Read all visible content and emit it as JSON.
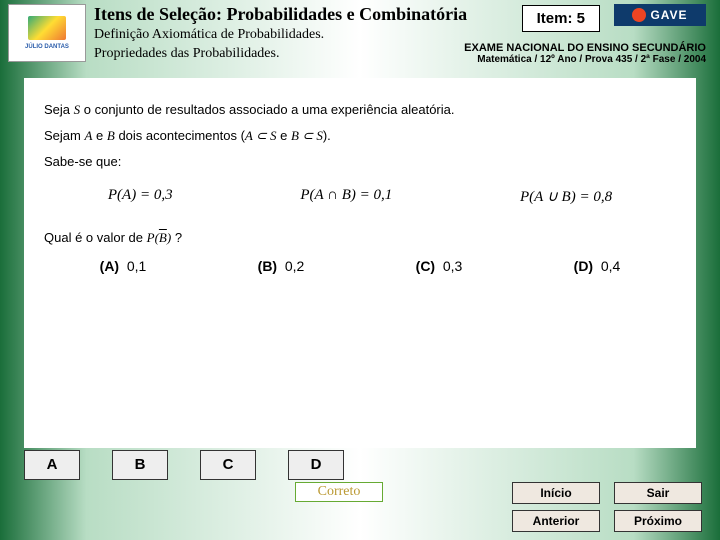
{
  "header": {
    "title": "Itens de Seleção: Probabilidades e Combinatória",
    "subtitle1": "Definição Axiomática de Probabilidades.",
    "subtitle2": "Propriedades das Probabilidades.",
    "item_label": "Item: 5",
    "gave_text": "GAVE",
    "exam_line1": "EXAME NACIONAL DO ENSINO SECUNDÁRIO",
    "exam_line2": "Matemática / 12º Ano / Prova 435 / 2ª Fase / 2004"
  },
  "problem": {
    "line1_pre": "Seja ",
    "line1_var": "S",
    "line1_post": " o conjunto de resultados associado a uma experiência aleatória.",
    "line2_pre": "Sejam ",
    "line2_a": "A",
    "line2_mid1": " e ",
    "line2_b": "B",
    "line2_mid2": " dois acontecimentos (",
    "line2_sub1": "A ⊂ S",
    "line2_mid3": " e ",
    "line2_sub2": "B ⊂ S",
    "line2_end": ").",
    "line3": "Sabe-se que:",
    "eq1": "P(A) = 0,3",
    "eq2": "P(A ∩ B) = 0,1",
    "eq3": "P(A ∪ B) = 0,8",
    "q_pre": "Qual é o valor de  ",
    "q_expr": "P(",
    "q_var": "B",
    "q_close": ")",
    "q_post": "  ?"
  },
  "options": {
    "a_label": "(A)",
    "a_val": "0,1",
    "b_label": "(B)",
    "b_val": "0,2",
    "c_label": "(C)",
    "c_val": "0,3",
    "d_label": "(D)",
    "d_val": "0,4"
  },
  "answers": {
    "a": "A",
    "b": "B",
    "c": "C",
    "d": "D"
  },
  "feedback": "Correto",
  "nav": {
    "inicio": "Início",
    "sair": "Sair",
    "anterior": "Anterior",
    "proximo": "Próximo"
  },
  "logo_text": "JÚLIO DANTAS"
}
